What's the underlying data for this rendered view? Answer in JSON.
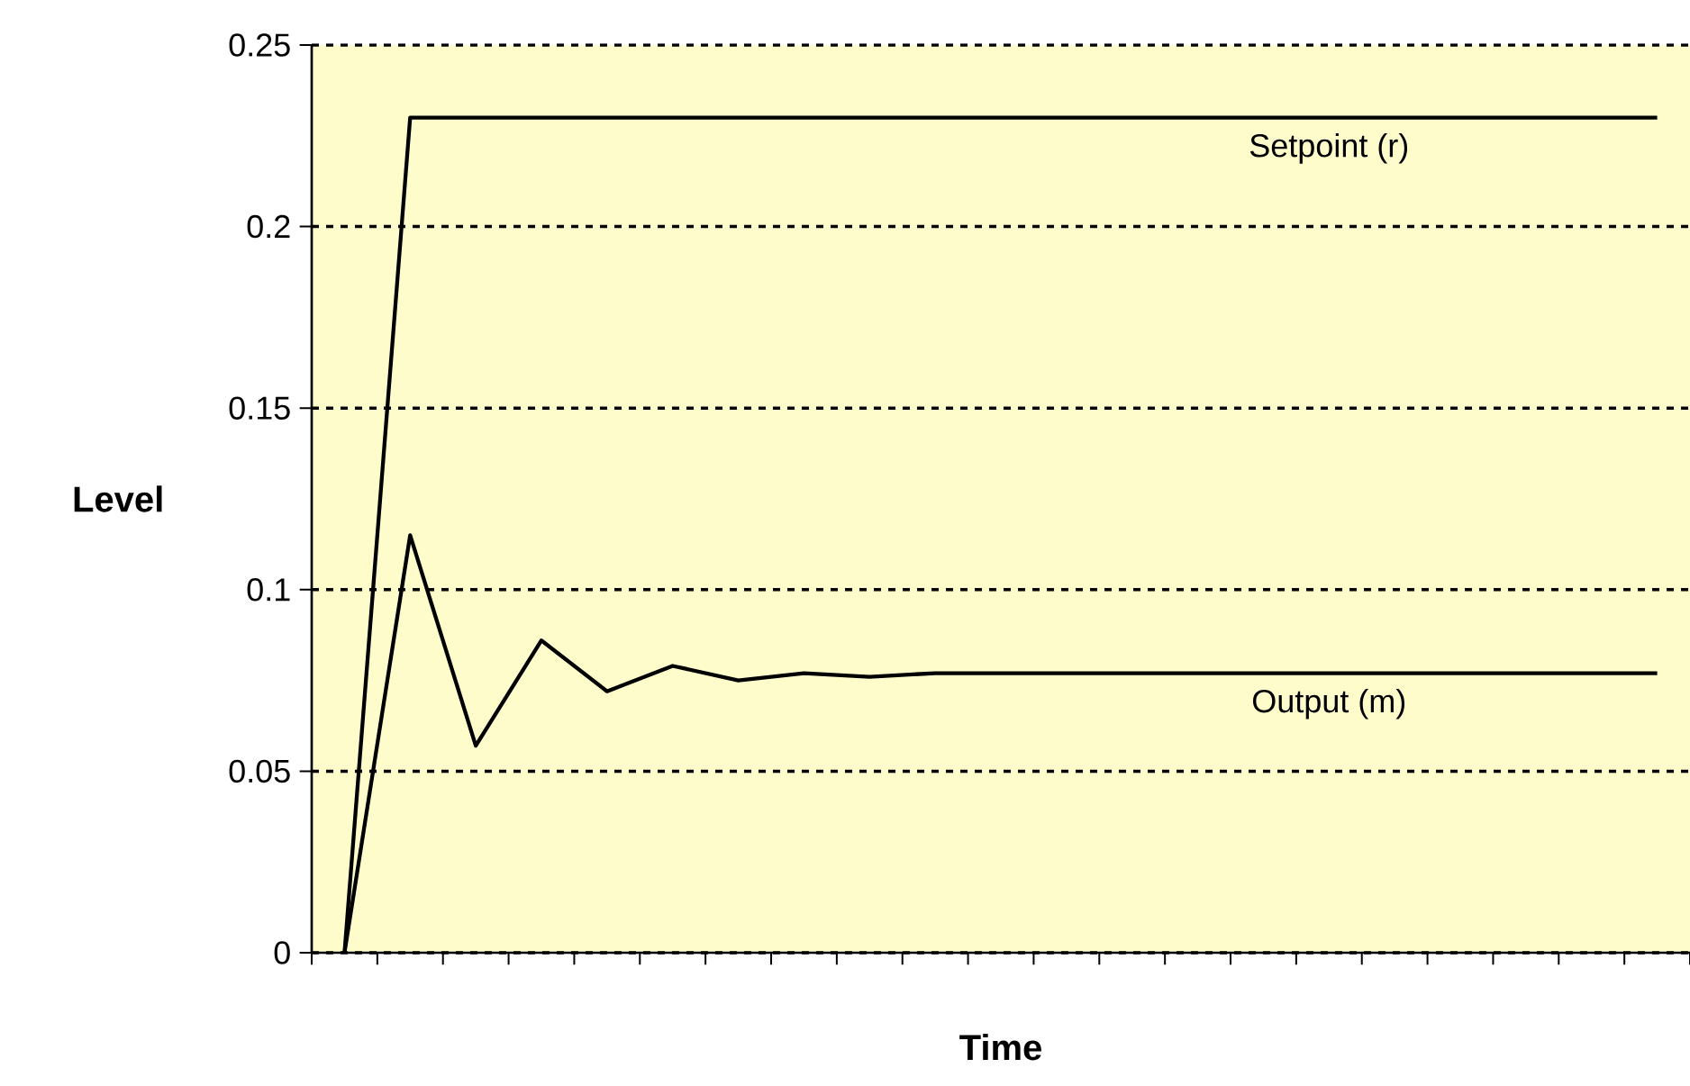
{
  "chart_data": {
    "type": "line",
    "xlabel": "Time",
    "ylabel": "Level",
    "categories": [
      null,
      null,
      null,
      null,
      null,
      null,
      null,
      null,
      null,
      null,
      null,
      null,
      null,
      null,
      null,
      null,
      null,
      null,
      null,
      null,
      null
    ],
    "series": [
      {
        "name": "Setpoint (r)",
        "color": "#000000",
        "values": [
          0,
          0.23,
          0.23,
          0.23,
          0.23,
          0.23,
          0.23,
          0.23,
          0.23,
          0.23,
          0.23,
          0.23,
          0.23,
          0.23,
          0.23,
          0.23,
          0.23,
          0.23,
          0.23,
          0.23,
          0.23
        ]
      },
      {
        "name": "Output (m)",
        "color": "#000000",
        "values": [
          0,
          0.115,
          0.057,
          0.086,
          0.072,
          0.079,
          0.075,
          0.077,
          0.076,
          0.077,
          0.077,
          0.077,
          0.077,
          0.077,
          0.077,
          0.077,
          0.077,
          0.077,
          0.077,
          0.077,
          0.077
        ]
      }
    ],
    "ylim": [
      0,
      0.25
    ],
    "yticks": [
      0,
      0.05,
      0.1,
      0.15,
      0.2,
      0.25
    ],
    "grid": "y"
  }
}
